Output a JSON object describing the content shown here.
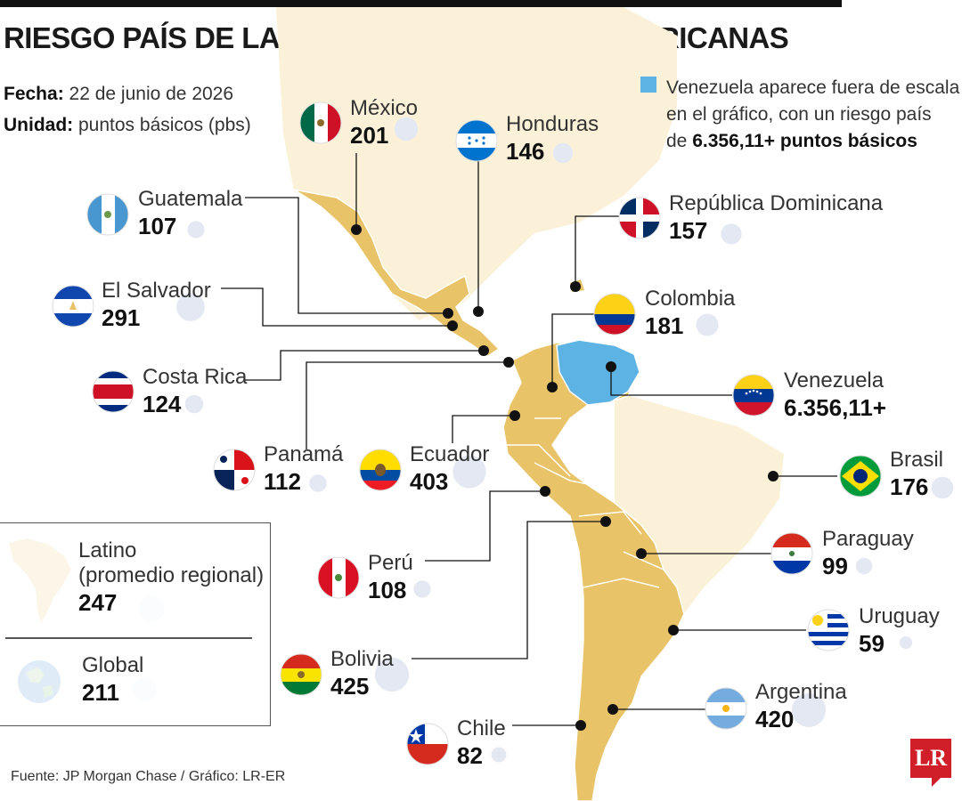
{
  "header": {
    "title": "RIESGO PAÍS DE LAS ECONOMÍAS LATINOAMERICANAS",
    "date_label": "Fecha:",
    "date_value": "22 de junio de 2026",
    "unit_label": "Unidad:",
    "unit_value": "puntos básicos (pbs)"
  },
  "note": {
    "line1": "Venezuela aparece fuera de escala",
    "line2": "en el gráfico, con un riesgo país",
    "line3_prefix": "de",
    "line3_bold": "6.356,11+ puntos básicos",
    "color": "#5db3e4"
  },
  "colors": {
    "latam": "#e8c368",
    "background_land": "#fbf1d8",
    "venezuela": "#5db3e4",
    "bubble": "#e3e8f3"
  },
  "countries": {
    "mexico": {
      "name": "México",
      "value": "201",
      "pbs": 201
    },
    "honduras": {
      "name": "Honduras",
      "value": "146",
      "pbs": 146
    },
    "guatemala": {
      "name": "Guatemala",
      "value": "107",
      "pbs": 107
    },
    "dominicana": {
      "name": "República Dominicana",
      "value": "157",
      "pbs": 157
    },
    "salvador": {
      "name": "El Salvador",
      "value": "291",
      "pbs": 291
    },
    "colombia": {
      "name": "Colombia",
      "value": "181",
      "pbs": 181
    },
    "costarica": {
      "name": "Costa Rica",
      "value": "124",
      "pbs": 124
    },
    "venezuela": {
      "name": "Venezuela",
      "value": "6.356,11+",
      "pbs": 6356.11
    },
    "panama": {
      "name": "Panamá",
      "value": "112",
      "pbs": 112
    },
    "ecuador": {
      "name": "Ecuador",
      "value": "403",
      "pbs": 403
    },
    "brasil": {
      "name": "Brasil",
      "value": "176",
      "pbs": 176
    },
    "peru": {
      "name": "Perú",
      "value": "108",
      "pbs": 108
    },
    "paraguay": {
      "name": "Paraguay",
      "value": "99",
      "pbs": 99
    },
    "uruguay": {
      "name": "Uruguay",
      "value": "59",
      "pbs": 59
    },
    "bolivia": {
      "name": "Bolivia",
      "value": "425",
      "pbs": 425
    },
    "argentina": {
      "name": "Argentina",
      "value": "420",
      "pbs": 420
    },
    "chile": {
      "name": "Chile",
      "value": "82",
      "pbs": 82
    }
  },
  "legend": {
    "latino_line1": "Latino",
    "latino_line2": "(promedio regional)",
    "latino_value": "247",
    "latino_pbs": 247,
    "global_label": "Global",
    "global_value": "211",
    "global_pbs": 211
  },
  "footer": {
    "source": "Fuente: JP Morgan Chase / Gráfico: LR-ER",
    "logo": "LR"
  }
}
